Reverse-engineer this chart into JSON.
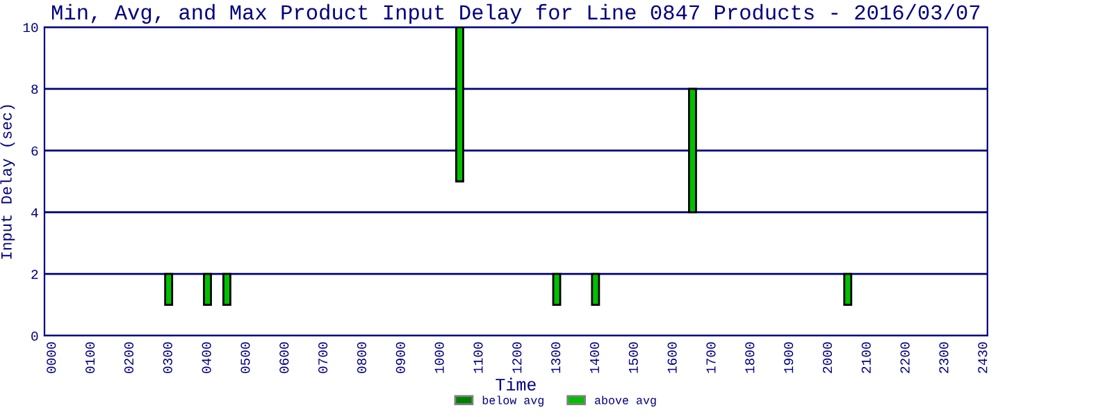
{
  "chart_data": {
    "type": "bar",
    "title": "Min, Avg, and Max Product Input Delay for Line 0847 Products - 2016/03/07",
    "xlabel": "Time",
    "ylabel": "Input Delay (sec)",
    "categories": [
      "0000",
      null,
      "0100",
      null,
      "0200",
      null,
      "0300",
      null,
      "0400",
      null,
      "0500",
      null,
      "0600",
      null,
      "0700",
      null,
      "0800",
      null,
      "0900",
      null,
      "1000",
      null,
      "1100",
      null,
      "1200",
      null,
      "1300",
      null,
      "1400",
      null,
      "1500",
      null,
      "1600",
      null,
      "1700",
      null,
      "1800",
      null,
      "1900",
      null,
      "2000",
      null,
      "2100",
      null,
      "2200",
      null,
      "2300",
      null,
      "2430"
    ],
    "series": [
      {
        "name": "below avg",
        "color": "#008000",
        "values": [
          null,
          null,
          null,
          null,
          null,
          null,
          null,
          null,
          null,
          null,
          null,
          null,
          null,
          null,
          null,
          null,
          null,
          null,
          null,
          null,
          null,
          null,
          null,
          null,
          null,
          null,
          null,
          null,
          null,
          null,
          null,
          null,
          null,
          null,
          null,
          null,
          null,
          null,
          null,
          null,
          null,
          null,
          null,
          null,
          null,
          null,
          null,
          null,
          null
        ]
      },
      {
        "name": "above avg",
        "color": "#00c000",
        "base": [
          null,
          null,
          null,
          null,
          null,
          null,
          1,
          null,
          1,
          1,
          null,
          null,
          null,
          null,
          null,
          null,
          null,
          null,
          null,
          null,
          null,
          5,
          null,
          null,
          null,
          null,
          1,
          null,
          1,
          null,
          null,
          null,
          null,
          4,
          null,
          null,
          null,
          null,
          null,
          null,
          null,
          1,
          null,
          null,
          null,
          null,
          null,
          null,
          null
        ],
        "values": [
          null,
          null,
          null,
          null,
          null,
          null,
          1,
          null,
          1,
          1,
          null,
          null,
          null,
          null,
          null,
          null,
          null,
          null,
          null,
          null,
          null,
          5,
          null,
          null,
          null,
          null,
          1,
          null,
          1,
          null,
          null,
          null,
          null,
          4,
          null,
          null,
          null,
          null,
          null,
          null,
          null,
          1,
          null,
          null,
          null,
          null,
          null,
          null,
          null
        ]
      }
    ],
    "ylim": [
      0,
      10
    ],
    "yticks": [
      0,
      2,
      4,
      6,
      8,
      10
    ],
    "grid": "y",
    "legend": "bottom"
  }
}
